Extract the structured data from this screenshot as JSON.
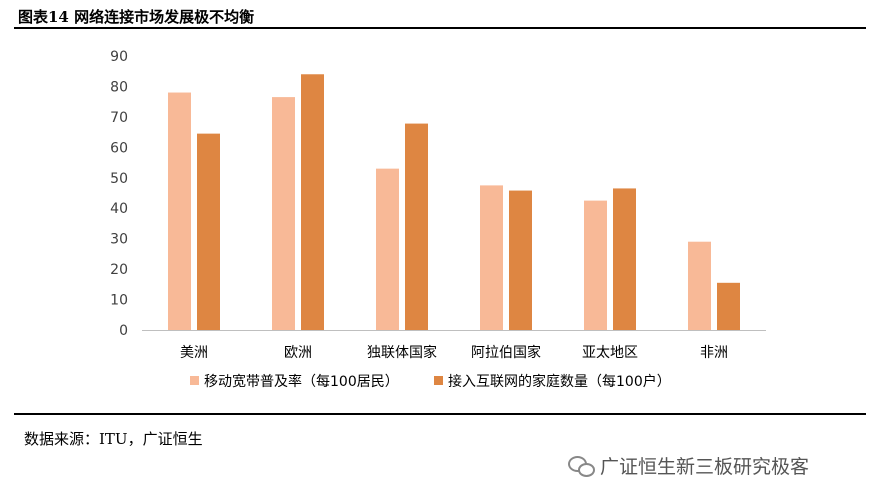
{
  "header": {
    "title": "图表14 网络连接市场发展极不均衡"
  },
  "footer": {
    "source": "数据来源：ITU，广证恒生"
  },
  "watermark": {
    "text": "广证恒生新三板研究极客",
    "icon": "wechat-icon"
  },
  "chart_data": {
    "type": "bar",
    "title": "",
    "xlabel": "",
    "ylabel": "",
    "ylim": [
      0,
      90
    ],
    "yticks": [
      0,
      10,
      20,
      30,
      40,
      50,
      60,
      70,
      80,
      90
    ],
    "grid": false,
    "legend_position": "bottom",
    "categories": [
      "美洲",
      "欧洲",
      "独联体国家",
      "阿拉伯国家",
      "亚太地区",
      "非洲"
    ],
    "series": [
      {
        "name": "移动宽带普及率（每100居民）",
        "color": "#F8B997",
        "values": [
          78,
          76.5,
          53,
          47.5,
          42.5,
          29
        ]
      },
      {
        "name": "接入互联网的家庭数量（每100户）",
        "color": "#DE8642",
        "values": [
          64.5,
          84,
          67.8,
          45.8,
          46.5,
          15.5
        ]
      }
    ]
  }
}
